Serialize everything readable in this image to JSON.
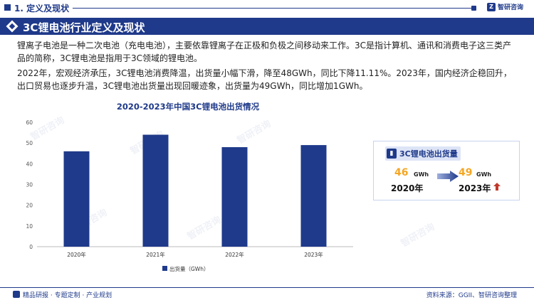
{
  "header": {
    "section_title": "1. 定义及现状",
    "logo_text": "智研咨询"
  },
  "band": {
    "title": "3C锂电池行业定义及现状"
  },
  "paragraphs": [
    "锂离子电池是一种二次电池（充电电池），主要依靠锂离子在正极和负极之间移动来工作。3C是指计算机、通讯和消费电子这三类产品的简称，3C锂电池是指用于3C领域的锂电池。",
    "2022年，宏观经济承压，3C锂电池消费降温，出货量小幅下滑，降至48GWh，同比下降11.11%。2023年，国内经济企稳回升，出口贸易也逐步升温，3C锂电池出货量出现回暖迹象，出货量为49GWh，同比增加1GWh。"
  ],
  "chart_data": {
    "type": "bar",
    "title": "2020-2023年中国3C锂电池出货情况",
    "categories": [
      "2020年",
      "2021年",
      "2022年",
      "2023年"
    ],
    "series": [
      {
        "name": "出货量（GWh）",
        "values": [
          46,
          54,
          48,
          49
        ],
        "color": "#1f3a8a"
      }
    ],
    "ylim": [
      0,
      60
    ],
    "yticks": [
      0,
      10,
      20,
      30,
      40,
      50,
      60
    ],
    "xlabel": "",
    "ylabel": "",
    "grid": false,
    "legend": "bottom-left"
  },
  "card": {
    "title": "3C锂电池出货量",
    "from_value": "46",
    "from_unit": "GWh",
    "from_year": "2020年",
    "to_value": "49",
    "to_unit": "GWh",
    "to_year": "2023年"
  },
  "footer": {
    "left": "精品研报 · 专题定制 · 产业规划",
    "right": "资料来源：GGII、智研咨询整理"
  },
  "watermark": "智研咨询",
  "colors": {
    "brand": "#1f3a8a",
    "highlight": "#f5a623",
    "up_arrow": "#c0392b"
  }
}
